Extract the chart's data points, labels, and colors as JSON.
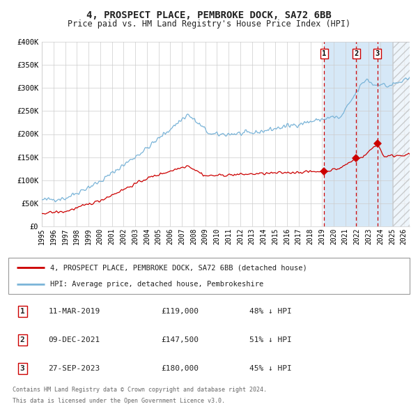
{
  "title": "4, PROSPECT PLACE, PEMBROKE DOCK, SA72 6BB",
  "subtitle": "Price paid vs. HM Land Registry's House Price Index (HPI)",
  "legend_line1": "4, PROSPECT PLACE, PEMBROKE DOCK, SA72 6BB (detached house)",
  "legend_line2": "HPI: Average price, detached house, Pembrokeshire",
  "transactions": [
    {
      "label": "1",
      "date": "11-MAR-2019",
      "price": 119000,
      "price_str": "£119,000",
      "pct": "48% ↓ HPI",
      "x_year": 2019.19
    },
    {
      "label": "2",
      "date": "09-DEC-2021",
      "price": 147500,
      "price_str": "£147,500",
      "pct": "51% ↓ HPI",
      "x_year": 2021.92
    },
    {
      "label": "3",
      "date": "27-SEP-2023",
      "price": 180000,
      "price_str": "£180,000",
      "pct": "45% ↓ HPI",
      "x_year": 2023.73
    }
  ],
  "footer_line1": "Contains HM Land Registry data © Crown copyright and database right 2024.",
  "footer_line2": "This data is licensed under the Open Government Licence v3.0.",
  "hpi_color": "#7ab4d8",
  "price_color": "#cc0000",
  "marker_color": "#cc0000",
  "dashed_line_color": "#cc0000",
  "shade_color": "#d6e8f7",
  "background_color": "#ffffff",
  "grid_color": "#cccccc",
  "xmin": 1995,
  "xmax": 2026.5,
  "ymin": 0,
  "ymax": 400000,
  "yticks": [
    0,
    50000,
    100000,
    150000,
    200000,
    250000,
    300000,
    350000,
    400000
  ],
  "ylabels": [
    "£0",
    "£50K",
    "£100K",
    "£150K",
    "£200K",
    "£250K",
    "£300K",
    "£350K",
    "£400K"
  ],
  "shade_start": 2019.19,
  "hatch_start": 2025.08
}
